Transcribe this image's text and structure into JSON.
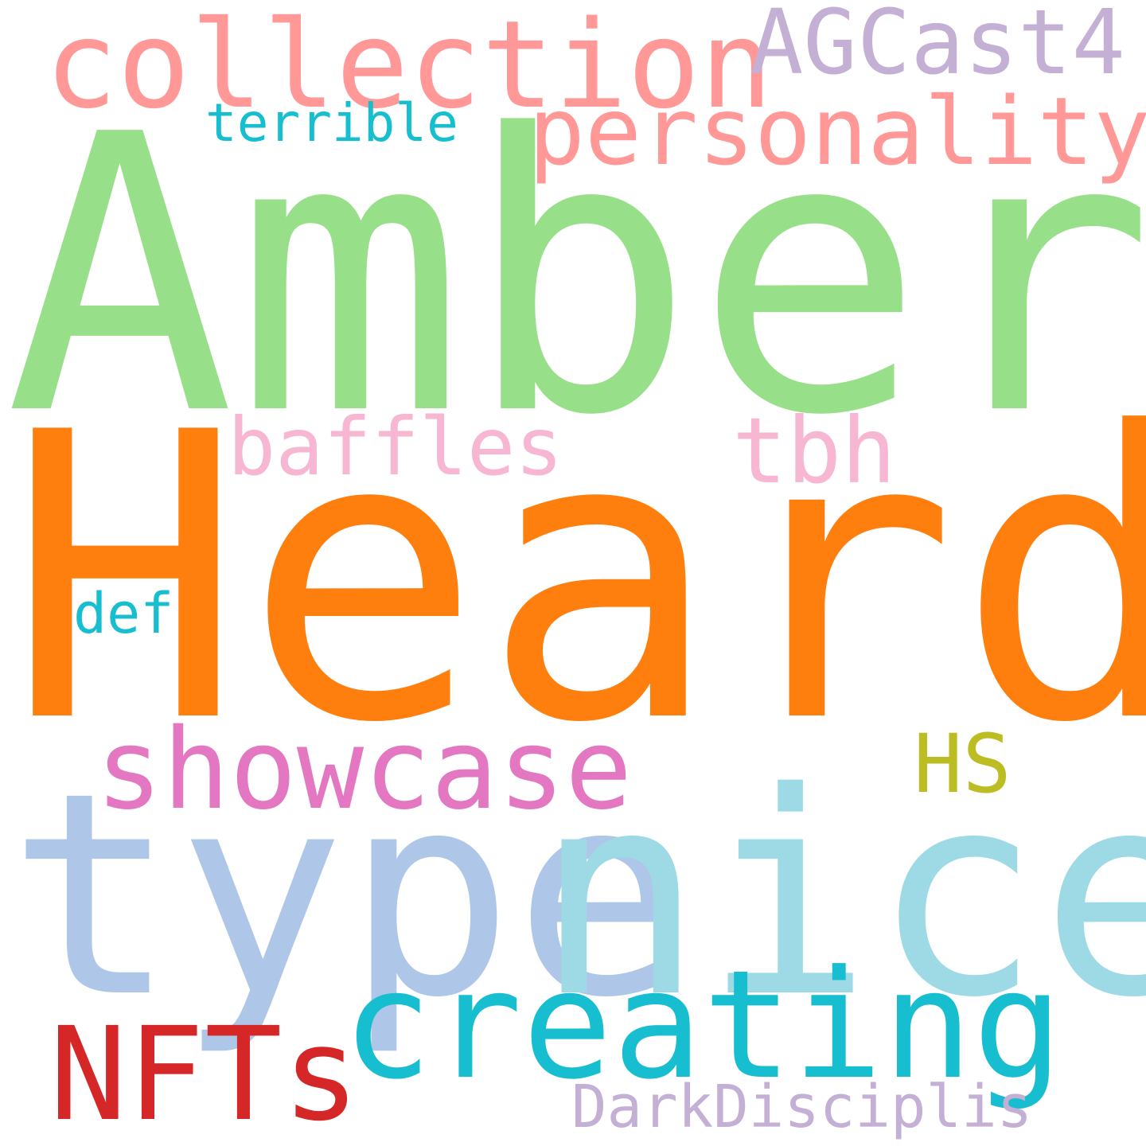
{
  "background": "#ffffff",
  "words": {
    "amber": {
      "text": "Amber",
      "color": "#98df8a"
    },
    "heard": {
      "text": "Heard",
      "color": "#ff7f0e"
    },
    "type": {
      "text": "type",
      "color": "#aec7e8"
    },
    "nice": {
      "text": "nice",
      "color": "#9edae5"
    },
    "creating": {
      "text": "creating",
      "color": "#17becf"
    },
    "collection": {
      "text": "collection",
      "color": "#ff9896"
    },
    "showcase": {
      "text": "showcase",
      "color": "#e377c2"
    },
    "nfts": {
      "text": "NFTs",
      "color": "#d62728"
    },
    "personality": {
      "text": "personality",
      "color": "#ff9896"
    },
    "agcast4": {
      "text": "AGCast4",
      "color": "#c5b0d5"
    },
    "baffles": {
      "text": "baffles",
      "color": "#f7b6d2"
    },
    "tbh": {
      "text": "tbh",
      "color": "#f7b6d2"
    },
    "hs": {
      "text": "HS",
      "color": "#bcbd22"
    },
    "terrible": {
      "text": "terrible",
      "color": "#17becf"
    },
    "def": {
      "text": "def",
      "color": "#17becf"
    },
    "darkdisciplis": {
      "text": "DarkDisciplis",
      "color": "#c5b0d5"
    }
  }
}
